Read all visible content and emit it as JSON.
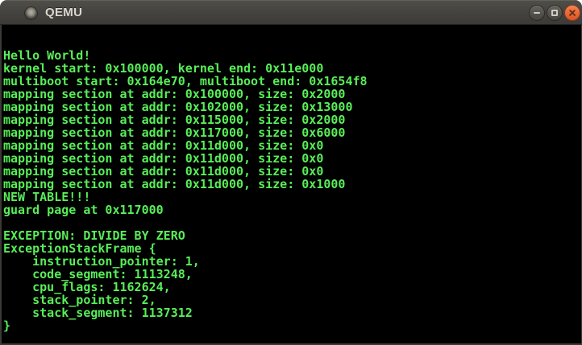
{
  "window": {
    "title": "QEMU",
    "controls": {
      "minimize_icon": "minimize-icon",
      "maximize_icon": "maximize-icon",
      "close_icon": "close-icon"
    }
  },
  "colors": {
    "terminal_background": "#000000",
    "terminal_text_green": "#58ee58",
    "titlebar_gray": "#454440",
    "titlebar_text": "#dbd7ce",
    "close_button_orange": "#e86a3a"
  },
  "terminal": {
    "lines": [
      "Hello World!",
      "kernel start: 0x100000, kernel end: 0x11e000",
      "multiboot start: 0x164e70, multiboot end: 0x1654f8",
      "mapping section at addr: 0x100000, size: 0x2000",
      "mapping section at addr: 0x102000, size: 0x13000",
      "mapping section at addr: 0x115000, size: 0x2000",
      "mapping section at addr: 0x117000, size: 0x6000",
      "mapping section at addr: 0x11d000, size: 0x0",
      "mapping section at addr: 0x11d000, size: 0x0",
      "mapping section at addr: 0x11d000, size: 0x0",
      "mapping section at addr: 0x11d000, size: 0x1000",
      "NEW TABLE!!!",
      "guard page at 0x117000",
      "",
      "EXCEPTION: DIVIDE BY ZERO",
      "ExceptionStackFrame {",
      "    instruction_pointer: 1,",
      "    code_segment: 1113248,",
      "    cpu_flags: 1162624,",
      "    stack_pointer: 2,",
      "    stack_segment: 1137312",
      "}"
    ]
  }
}
